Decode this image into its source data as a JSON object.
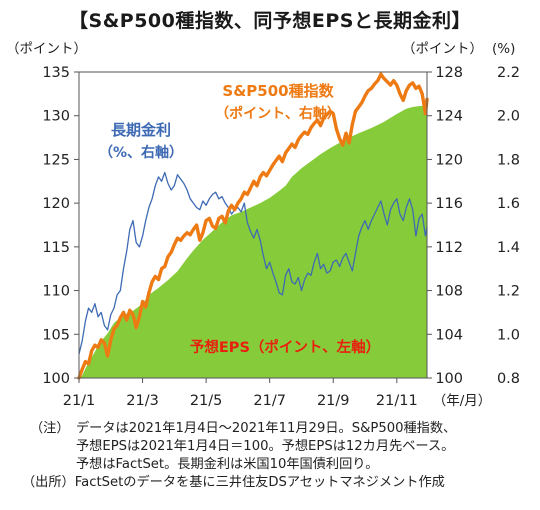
{
  "title": "【S&P500種指数、同予想EPSと長期金利】",
  "unit_left": "（ポイント）",
  "unit_right_primary": "（ポイント）",
  "unit_right_secondary": "(%)",
  "x_unit": "（年/月）",
  "colors": {
    "eps_fill": "#86cc3a",
    "sp500_line": "#ee7a14",
    "yield_line": "#3e6ab4",
    "eps_label": "#e8200f",
    "axis": "#555555"
  },
  "notes": {
    "prefix": "（注）",
    "line1": "データは2021年1月4日～2021年11月29日。S&P500種指数、",
    "line2": "予想EPSは2021年1月4日＝100。予想EPSは12カ月先ベース。",
    "line3": "予想はFactSet。長期金利は米国10年国債利回り。",
    "source_prefix": "（出所）",
    "source": "FactSetのデータを基に三井住友DSアセットマネジメント作成"
  },
  "chart_data": {
    "type": "area",
    "x_tick_labels": [
      "21/1",
      "21/3",
      "21/5",
      "21/7",
      "21/9",
      "21/11"
    ],
    "x_ticks_month_offset": [
      0,
      2,
      4,
      6,
      8,
      10
    ],
    "x_range_months": [
      0,
      10.95
    ],
    "axes": {
      "left": {
        "ticks": [
          100,
          105,
          110,
          115,
          120,
          125,
          130,
          135
        ],
        "range": [
          100,
          135
        ]
      },
      "right_primary": {
        "ticks": [
          100,
          104,
          108,
          112,
          116,
          120,
          124,
          128
        ],
        "range": [
          100,
          128
        ]
      },
      "right_secondary": {
        "ticks": [
          "0.8",
          "1.0",
          "1.2",
          "1.4",
          "1.6",
          "1.8",
          "2.0",
          "2.2"
        ],
        "range": [
          0.8,
          2.2
        ]
      }
    },
    "series": [
      {
        "name": "予想EPS（ポイント、左軸）",
        "type": "area",
        "axis": "left",
        "x": [
          0,
          0.1,
          0.3,
          0.5,
          0.6,
          0.9,
          1.1,
          1.4,
          1.7,
          2.0,
          2.2,
          2.5,
          2.8,
          3.1,
          3.4,
          3.6,
          3.9,
          4.2,
          4.5,
          4.8,
          5.1,
          5.4,
          5.7,
          6.0,
          6.3,
          6.5,
          6.7,
          7.0,
          7.3,
          7.6,
          7.9,
          8.2,
          8.5,
          8.8,
          9.2,
          9.6,
          10.0,
          10.3,
          10.5,
          10.7,
          10.95
        ],
        "values": [
          100,
          100.3,
          101.8,
          103.0,
          103.8,
          105.1,
          106.3,
          107.2,
          107.7,
          108.5,
          109.5,
          110.3,
          111.2,
          112.2,
          113.7,
          114.6,
          115.8,
          116.8,
          117.8,
          118.6,
          119.0,
          119.5,
          120.0,
          120.6,
          121.4,
          122.0,
          123.0,
          124.0,
          124.8,
          125.6,
          126.3,
          126.9,
          127.5,
          128.0,
          128.6,
          129.3,
          130.2,
          130.8,
          131.0,
          131.1,
          131.2
        ]
      },
      {
        "name": "S&P500種指数（ポイント、右軸）",
        "type": "line",
        "axis": "right_primary",
        "x": [
          0,
          0.1,
          0.2,
          0.3,
          0.4,
          0.5,
          0.6,
          0.7,
          0.8,
          0.9,
          1.0,
          1.1,
          1.2,
          1.3,
          1.4,
          1.5,
          1.6,
          1.7,
          1.8,
          1.9,
          2.0,
          2.1,
          2.2,
          2.3,
          2.4,
          2.5,
          2.6,
          2.7,
          2.8,
          2.9,
          3.0,
          3.1,
          3.2,
          3.3,
          3.4,
          3.5,
          3.6,
          3.7,
          3.8,
          3.9,
          4.0,
          4.1,
          4.2,
          4.3,
          4.4,
          4.5,
          4.6,
          4.7,
          4.8,
          4.9,
          5.0,
          5.1,
          5.2,
          5.3,
          5.4,
          5.5,
          5.6,
          5.7,
          5.8,
          5.9,
          6.0,
          6.1,
          6.2,
          6.3,
          6.4,
          6.5,
          6.6,
          6.7,
          6.8,
          6.9,
          7.0,
          7.1,
          7.2,
          7.3,
          7.4,
          7.5,
          7.6,
          7.7,
          7.8,
          7.9,
          8.0,
          8.1,
          8.2,
          8.3,
          8.4,
          8.5,
          8.6,
          8.7,
          8.8,
          8.9,
          9.0,
          9.1,
          9.2,
          9.3,
          9.4,
          9.5,
          9.6,
          9.7,
          9.8,
          9.9,
          10.0,
          10.1,
          10.2,
          10.3,
          10.4,
          10.5,
          10.6,
          10.7,
          10.8,
          10.9,
          10.95
        ],
        "values": [
          100.0,
          100.8,
          101.5,
          101.3,
          102.5,
          103.0,
          102.8,
          103.5,
          103.2,
          102.0,
          103.5,
          104.5,
          104.8,
          105.5,
          106.0,
          105.3,
          106.2,
          105.8,
          104.6,
          105.6,
          107.0,
          106.5,
          107.8,
          108.8,
          109.3,
          109.0,
          110.0,
          110.2,
          111.1,
          111.5,
          112.2,
          112.8,
          112.6,
          113.0,
          113.3,
          113.1,
          113.6,
          114.0,
          112.6,
          113.3,
          114.4,
          114.6,
          113.9,
          113.7,
          114.6,
          114.8,
          114.2,
          115.3,
          115.8,
          115.4,
          116.0,
          116.4,
          117.0,
          116.8,
          117.4,
          118.0,
          117.6,
          118.4,
          118.8,
          118.5,
          119.0,
          119.5,
          119.9,
          120.3,
          119.8,
          120.6,
          121.0,
          121.4,
          121.1,
          121.8,
          122.2,
          122.5,
          122.3,
          122.9,
          123.3,
          123.6,
          123.1,
          123.8,
          124.1,
          124.4,
          124.2,
          122.8,
          121.9,
          121.3,
          122.4,
          121.5,
          123.2,
          124.4,
          124.8,
          125.2,
          125.8,
          126.3,
          126.5,
          126.9,
          127.2,
          127.8,
          127.4,
          127.1,
          126.8,
          127.2,
          126.8,
          126.0,
          125.4,
          126.3,
          126.8,
          127.0,
          126.5,
          126.7,
          126.0,
          124.2,
          125.5
        ]
      },
      {
        "name": "長期金利（%、右軸）",
        "type": "line",
        "axis": "right_secondary",
        "x": [
          0,
          0.1,
          0.2,
          0.3,
          0.4,
          0.5,
          0.6,
          0.7,
          0.8,
          0.9,
          1.0,
          1.1,
          1.2,
          1.3,
          1.4,
          1.5,
          1.6,
          1.7,
          1.8,
          1.9,
          2.0,
          2.1,
          2.2,
          2.3,
          2.4,
          2.5,
          2.6,
          2.7,
          2.8,
          2.9,
          3.0,
          3.1,
          3.2,
          3.3,
          3.4,
          3.5,
          3.6,
          3.7,
          3.8,
          3.9,
          4.0,
          4.1,
          4.2,
          4.3,
          4.4,
          4.5,
          4.6,
          4.7,
          4.8,
          4.9,
          5.0,
          5.1,
          5.2,
          5.3,
          5.4,
          5.5,
          5.6,
          5.7,
          5.8,
          5.9,
          6.0,
          6.1,
          6.2,
          6.3,
          6.4,
          6.5,
          6.6,
          6.7,
          6.8,
          6.9,
          7.0,
          7.1,
          7.2,
          7.3,
          7.4,
          7.5,
          7.6,
          7.7,
          7.8,
          7.9,
          8.0,
          8.1,
          8.2,
          8.3,
          8.4,
          8.5,
          8.6,
          8.7,
          8.8,
          8.9,
          9.0,
          9.1,
          9.2,
          9.3,
          9.4,
          9.5,
          9.6,
          9.7,
          9.8,
          9.9,
          10.0,
          10.1,
          10.2,
          10.3,
          10.4,
          10.5,
          10.6,
          10.7,
          10.8,
          10.9,
          10.95
        ],
        "values": [
          0.91,
          0.97,
          1.06,
          1.12,
          1.1,
          1.14,
          1.08,
          1.1,
          1.04,
          1.02,
          1.09,
          1.12,
          1.18,
          1.2,
          1.3,
          1.38,
          1.48,
          1.52,
          1.42,
          1.4,
          1.45,
          1.52,
          1.58,
          1.62,
          1.68,
          1.72,
          1.7,
          1.74,
          1.69,
          1.66,
          1.68,
          1.73,
          1.71,
          1.69,
          1.66,
          1.62,
          1.6,
          1.58,
          1.57,
          1.61,
          1.59,
          1.62,
          1.64,
          1.65,
          1.62,
          1.63,
          1.6,
          1.58,
          1.55,
          1.57,
          1.58,
          1.56,
          1.6,
          1.51,
          1.47,
          1.44,
          1.48,
          1.43,
          1.36,
          1.3,
          1.33,
          1.28,
          1.24,
          1.19,
          1.18,
          1.27,
          1.3,
          1.24,
          1.23,
          1.26,
          1.2,
          1.25,
          1.28,
          1.27,
          1.33,
          1.37,
          1.3,
          1.32,
          1.28,
          1.29,
          1.33,
          1.34,
          1.31,
          1.35,
          1.37,
          1.33,
          1.29,
          1.37,
          1.45,
          1.49,
          1.52,
          1.48,
          1.52,
          1.55,
          1.58,
          1.61,
          1.55,
          1.5,
          1.57,
          1.6,
          1.62,
          1.55,
          1.52,
          1.58,
          1.62,
          1.57,
          1.45,
          1.53,
          1.55,
          1.45,
          1.49
        ]
      }
    ],
    "annotations": [
      {
        "text_line1": "S&P500種指数",
        "text_line2": "（ポイント、右軸）",
        "color": "#ee7a14"
      },
      {
        "text_line1": "長期金利",
        "text_line2": "（%、右軸）",
        "color": "#3e6ab4"
      },
      {
        "text_line1": "予想EPS（ポイント、左軸）",
        "color": "#e8200f"
      }
    ]
  }
}
